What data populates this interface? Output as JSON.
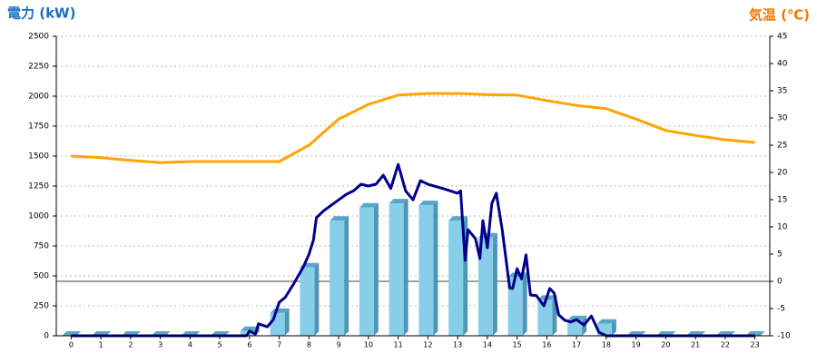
{
  "chart_data": {
    "type": "combo",
    "y_title": "電力 (kW)",
    "y2_title": "気温 (℃)",
    "categories": [
      "0",
      "1",
      "2",
      "3",
      "4",
      "5",
      "6",
      "7",
      "8",
      "9",
      "10",
      "11",
      "12",
      "13",
      "14",
      "15",
      "16",
      "17",
      "18",
      "19",
      "20",
      "21",
      "22",
      "23"
    ],
    "xlim": [
      -0.5,
      23.5
    ],
    "ylim": [
      0,
      2500
    ],
    "yticks": [
      0,
      250,
      500,
      750,
      1000,
      1250,
      1500,
      1750,
      2000,
      2250,
      2500
    ],
    "y2lim": [
      -10,
      45
    ],
    "y2ticks": [
      -10,
      -5,
      0,
      5,
      10,
      15,
      20,
      25,
      30,
      35,
      40,
      45
    ],
    "grid": true,
    "series": [
      {
        "type": "bar",
        "color": "#87ceeb",
        "values": [
          0,
          0,
          0,
          0,
          0,
          0,
          40,
          190,
          570,
          960,
          1070,
          1105,
          1090,
          960,
          820,
          490,
          300,
          130,
          100,
          0,
          0,
          0,
          0,
          0
        ]
      },
      {
        "type": "line",
        "color": "#00008b",
        "x": [
          0,
          5.9,
          6.0,
          6.2,
          6.3,
          6.6,
          6.8,
          7.0,
          7.2,
          7.5,
          7.8,
          8.0,
          8.15,
          8.25,
          8.5,
          8.75,
          9.0,
          9.25,
          9.5,
          9.75,
          10.0,
          10.25,
          10.5,
          10.75,
          11.0,
          11.25,
          11.5,
          11.75,
          12.0,
          12.5,
          13.0,
          13.1,
          13.25,
          13.35,
          13.6,
          13.75,
          13.85,
          14.0,
          14.15,
          14.3,
          14.5,
          14.75,
          14.85,
          15.0,
          15.15,
          15.3,
          15.45,
          15.65,
          15.9,
          16.1,
          16.25,
          16.4,
          16.6,
          16.8,
          17.0,
          17.25,
          17.5,
          17.75,
          18.0,
          23.0
        ],
        "values": [
          0,
          0,
          40,
          15,
          100,
          75,
          135,
          280,
          320,
          440,
          570,
          680,
          800,
          985,
          1045,
          1090,
          1135,
          1180,
          1210,
          1265,
          1250,
          1265,
          1340,
          1230,
          1430,
          1210,
          1135,
          1295,
          1265,
          1230,
          1190,
          1210,
          630,
          885,
          810,
          645,
          960,
          735,
          1105,
          1190,
          885,
          400,
          395,
          560,
          475,
          675,
          340,
          335,
          250,
          395,
          355,
          175,
          130,
          115,
          135,
          90,
          165,
          30,
          0,
          0
        ]
      },
      {
        "type": "line",
        "axis": "y2",
        "color": "#ffa500",
        "values": [
          23,
          22.7,
          22.2,
          21.8,
          22,
          22,
          22,
          22,
          25,
          29.8,
          32.5,
          34.2,
          34.5,
          34.5,
          34.3,
          34.2,
          33.2,
          32.3,
          31.7,
          29.8,
          27.7,
          26.8,
          26,
          25.5
        ]
      }
    ]
  }
}
